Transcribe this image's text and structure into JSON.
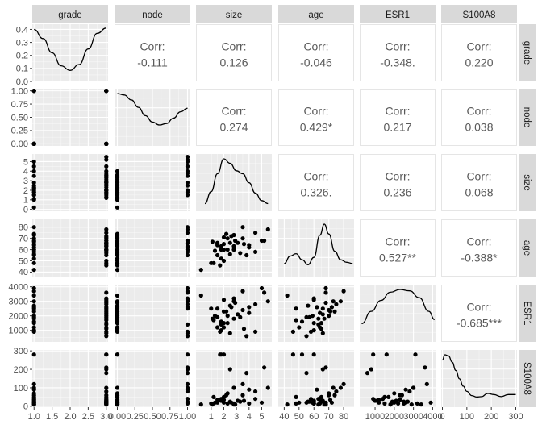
{
  "variables": [
    "grade",
    "node",
    "size",
    "age",
    "ESR1",
    "S100A8"
  ],
  "colors": {
    "panel": "#ebebeb",
    "strip": "#d9d9d9",
    "grid": "#ffffff",
    "point": "#000000",
    "text": "#595959"
  },
  "chart_data": {
    "type": "scatter",
    "title": "",
    "description": "scatterplot matrix",
    "corr_label": "Corr:",
    "axes": {
      "grade": {
        "lim": [
          0.95,
          3.05
        ],
        "ticks": [
          1.0,
          1.5,
          2.0,
          2.5,
          3.0
        ],
        "tick_labels": [
          "1.0",
          "1.5",
          "2.0",
          "2.5",
          "3.0"
        ]
      },
      "node": {
        "lim": [
          -0.04,
          1.04
        ],
        "ticks": [
          0,
          0.25,
          0.5,
          0.75,
          1.0
        ],
        "tick_labels": [
          "0.00",
          "0.25",
          "0.50",
          "0.75",
          "1.00"
        ]
      },
      "size": {
        "lim": [
          -0.2,
          5.8
        ],
        "ticks": [
          0,
          1,
          2,
          3,
          4,
          5
        ],
        "tick_labels": [
          "0",
          "1",
          "2",
          "3",
          "4",
          "5"
        ],
        "x_ticks": [
          1,
          2,
          3,
          4,
          5
        ]
      },
      "age": {
        "lim": [
          36,
          87
        ],
        "ticks": [
          40,
          50,
          60,
          70,
          80
        ],
        "tick_labels": [
          "40",
          "50",
          "60",
          "70",
          "80"
        ]
      },
      "ESR1": {
        "lim": [
          200,
          4150
        ],
        "ticks": [
          0,
          1000,
          2000,
          3000,
          4000
        ],
        "tick_labels": [
          "0",
          "1000",
          "2000",
          "3000",
          "4000"
        ],
        "x_ticks": [
          1000,
          2000,
          3000,
          4000
        ]
      },
      "S100A8": {
        "lim": [
          -5,
          305
        ],
        "ticks": [
          0,
          100,
          200,
          300
        ],
        "tick_labels": [
          "0",
          "100",
          "200",
          "300"
        ]
      }
    },
    "correlations": [
      {
        "row": 0,
        "col": 1,
        "text": "-0.111"
      },
      {
        "row": 0,
        "col": 2,
        "text": "0.126"
      },
      {
        "row": 0,
        "col": 3,
        "text": "-0.046"
      },
      {
        "row": 0,
        "col": 4,
        "text": "-0.348."
      },
      {
        "row": 0,
        "col": 5,
        "text": "0.220"
      },
      {
        "row": 1,
        "col": 2,
        "text": "0.274"
      },
      {
        "row": 1,
        "col": 3,
        "text": "0.429*"
      },
      {
        "row": 1,
        "col": 4,
        "text": "0.217"
      },
      {
        "row": 1,
        "col": 5,
        "text": "0.038"
      },
      {
        "row": 2,
        "col": 3,
        "text": "0.326."
      },
      {
        "row": 2,
        "col": 4,
        "text": "0.236"
      },
      {
        "row": 2,
        "col": 5,
        "text": "0.068"
      },
      {
        "row": 3,
        "col": 4,
        "text": "0.527**"
      },
      {
        "row": 3,
        "col": 5,
        "text": "-0.388*"
      },
      {
        "row": 4,
        "col": 5,
        "text": "-0.685***"
      }
    ],
    "density_y_ticks": {
      "ticks": [
        0,
        0.1,
        0.2,
        0.3,
        0.4
      ],
      "tick_labels": [
        "0.0",
        "0.1",
        "0.2",
        "0.3",
        "0.4"
      ],
      "lim": [
        0,
        0.44
      ]
    },
    "densities": {
      "grade": {
        "x": [
          1.0,
          1.25,
          1.5,
          1.75,
          2.0,
          2.25,
          2.5,
          2.75,
          3.0
        ],
        "y": [
          0.4,
          0.33,
          0.22,
          0.12,
          0.085,
          0.13,
          0.25,
          0.37,
          0.41
        ]
      },
      "node": {
        "x": [
          0,
          0.1,
          0.2,
          0.3,
          0.4,
          0.5,
          0.6,
          0.7,
          0.8,
          0.9,
          1.0
        ],
        "y": [
          1.0,
          0.97,
          0.87,
          0.72,
          0.55,
          0.42,
          0.36,
          0.39,
          0.5,
          0.63,
          0.7
        ]
      },
      "size": {
        "x": [
          0.5,
          1.0,
          1.5,
          2.0,
          2.5,
          3.0,
          3.5,
          4.0,
          4.5,
          5.0,
          5.5
        ],
        "y": [
          0.15,
          0.55,
          1.15,
          1.65,
          1.5,
          1.25,
          1.15,
          0.85,
          0.5,
          0.25,
          0.15
        ]
      },
      "age": {
        "x": [
          40,
          44,
          48,
          52,
          56,
          60,
          64,
          67,
          70,
          74,
          78,
          82,
          86
        ],
        "y": [
          0.4,
          0.7,
          0.8,
          0.55,
          0.35,
          0.65,
          1.55,
          2.0,
          1.6,
          0.9,
          0.55,
          0.45,
          0.4
        ]
      },
      "ESR1": {
        "x": [
          300,
          800,
          1300,
          1800,
          2300,
          2800,
          3300,
          3800,
          4100
        ],
        "y": [
          0.55,
          1.0,
          1.4,
          1.7,
          1.8,
          1.75,
          1.5,
          1.0,
          0.7
        ]
      },
      "S100A8": {
        "x": [
          0,
          10,
          25,
          40,
          55,
          70,
          85,
          100,
          120,
          140,
          160,
          185,
          210,
          240,
          270,
          300
        ],
        "y": [
          2.1,
          2.35,
          2.3,
          2.0,
          1.6,
          1.2,
          0.85,
          0.6,
          0.4,
          0.33,
          0.35,
          0.5,
          0.45,
          0.35,
          0.45,
          0.45
        ]
      }
    },
    "points": {
      "grade": [
        1,
        1,
        1,
        1,
        1,
        1,
        1,
        1,
        1,
        1,
        1,
        1,
        1,
        1,
        1,
        1,
        3,
        3,
        3,
        3,
        3,
        3,
        3,
        3,
        3,
        3,
        3,
        3,
        3,
        3,
        3,
        3,
        3,
        3,
        3,
        3,
        3,
        3,
        3
      ],
      "node": [
        0,
        0,
        0,
        0,
        0,
        0,
        0,
        1,
        1,
        1,
        1,
        0,
        0,
        0,
        0,
        0,
        0,
        0,
        0,
        0,
        0,
        0,
        1,
        1,
        1,
        1,
        1,
        0,
        0,
        0,
        0,
        0,
        0,
        0,
        0,
        1,
        1,
        1,
        1
      ],
      "size": [
        0.2,
        1.0,
        1.5,
        1.8,
        2.0,
        2.3,
        2.8,
        3.5,
        4.0,
        4.5,
        5.0,
        1.5,
        2.2,
        1.1,
        2.5,
        1.8,
        1.7,
        2.0,
        2.3,
        2.8,
        3.1,
        3.5,
        4.5,
        5.5,
        2.0,
        2.5,
        1.8,
        3.3,
        4.0,
        2.6,
        2.9,
        3.6,
        1.2,
        1.3,
        2.0,
        1.5,
        2.8,
        3.8,
        5.2
      ],
      "age": [
        42,
        48,
        55,
        60,
        65,
        70,
        73,
        80,
        62,
        58,
        68,
        64,
        74,
        67,
        56,
        52,
        46,
        50,
        60,
        63,
        66,
        70,
        75,
        78,
        60,
        66,
        63,
        57,
        64,
        72,
        68,
        65,
        48,
        59,
        71,
        66,
        60,
        55,
        68
      ],
      "ESR1": [
        3400,
        2500,
        1900,
        1000,
        1500,
        2000,
        3000,
        3700,
        2600,
        900,
        3900,
        1200,
        2300,
        1800,
        2700,
        1600,
        900,
        1200,
        1500,
        1800,
        2100,
        2400,
        2800,
        3000,
        3100,
        800,
        1400,
        1900,
        2200,
        2600,
        2900,
        1100,
        1700,
        2000,
        2300,
        2500,
        3200,
        600,
        3600
      ],
      "S100A8": [
        10,
        15,
        20,
        30,
        50,
        70,
        100,
        120,
        90,
        40,
        20,
        35,
        60,
        10,
        25,
        280,
        280,
        20,
        15,
        10,
        30,
        60,
        80,
        100,
        280,
        200,
        40,
        25,
        15,
        20,
        10,
        30,
        50,
        20,
        35,
        25,
        15,
        180,
        210
      ]
    }
  }
}
